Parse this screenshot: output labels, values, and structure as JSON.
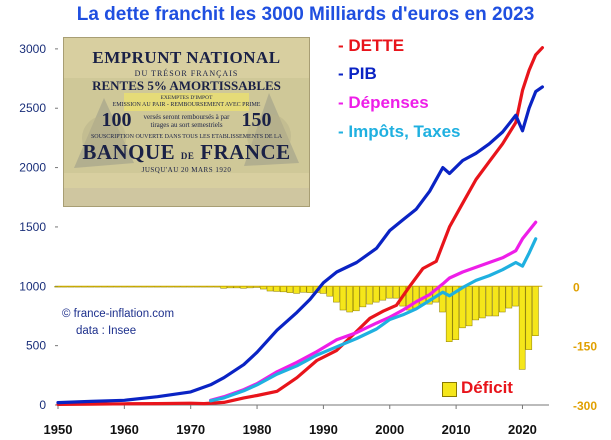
{
  "title": "La dette franchit les 3000 Milliards d'euros en 2023",
  "credit": {
    "line1": "© france-inflation.com",
    "line2": "data : Insee"
  },
  "legend": {
    "dette": "- DETTE",
    "pib": "- PIB",
    "depenses": "- Dépenses",
    "impots": "- Impôts, Taxes",
    "deficit": "Déficit"
  },
  "colors": {
    "dette": "#e8141b",
    "pib": "#0a23c4",
    "depenses": "#ee1ee8",
    "impots": "#1fb0e0",
    "deficit": "#f5e61a",
    "deficit_edge": "#8a7a00",
    "title": "#1f4fe0",
    "axis_left": "#1a2f7a",
    "axis_right": "#e0a000"
  },
  "poster": {
    "line1": "EMPRUNT NATIONAL",
    "line2": "DU TRÉSOR FRANÇAIS",
    "line3": "RENTES 5% AMORTISSABLES",
    "line4": "EXEMPTES D'IMPOT",
    "line5": "EMISSION AU PAIR - REMBOURSEMENT AVEC PRIME",
    "big_left": "100",
    "mid_text": "versés seront remboursés à par tirages au sort semestriels",
    "big_right": "150",
    "line7": "SOUSCRIPTION OUVERTE DANS TOUS LES ETABLISSEMENTS DE LA",
    "bank_a": "BANQUE",
    "bank_de": "DE",
    "bank_b": "FRANCE",
    "line9": "JUSQU'AU 20 MARS 1920"
  },
  "chart_data": {
    "type": "line",
    "title": "La dette franchit les 3000 Milliards d'euros en 2023",
    "xlim": [
      1950,
      2024
    ],
    "ylim": [
      0,
      3100
    ],
    "x_ticks": [
      1950,
      1960,
      1970,
      1980,
      1990,
      2000,
      2010,
      2020
    ],
    "y_ticks": [
      0,
      500,
      1000,
      1500,
      2000,
      2500,
      3000
    ],
    "grid": false,
    "legend_position": "top-right",
    "series": [
      {
        "name": "DETTE",
        "color": "#e8141b",
        "points": [
          [
            1950,
            5
          ],
          [
            1955,
            8
          ],
          [
            1960,
            10
          ],
          [
            1965,
            12
          ],
          [
            1970,
            15
          ],
          [
            1972,
            12
          ],
          [
            1975,
            22
          ],
          [
            1978,
            60
          ],
          [
            1980,
            80
          ],
          [
            1983,
            115
          ],
          [
            1986,
            230
          ],
          [
            1989,
            375
          ],
          [
            1992,
            460
          ],
          [
            1995,
            620
          ],
          [
            1997,
            730
          ],
          [
            1999,
            790
          ],
          [
            2001,
            840
          ],
          [
            2003,
            1000
          ],
          [
            2005,
            1150
          ],
          [
            2007,
            1210
          ],
          [
            2009,
            1500
          ],
          [
            2011,
            1700
          ],
          [
            2013,
            1900
          ],
          [
            2015,
            2050
          ],
          [
            2017,
            2200
          ],
          [
            2019,
            2380
          ],
          [
            2020,
            2650
          ],
          [
            2021,
            2820
          ],
          [
            2022,
            2950
          ],
          [
            2023,
            3010
          ]
        ]
      },
      {
        "name": "PIB",
        "color": "#0a23c4",
        "points": [
          [
            1950,
            20
          ],
          [
            1955,
            30
          ],
          [
            1960,
            40
          ],
          [
            1965,
            70
          ],
          [
            1970,
            110
          ],
          [
            1973,
            170
          ],
          [
            1975,
            230
          ],
          [
            1978,
            340
          ],
          [
            1980,
            445
          ],
          [
            1983,
            630
          ],
          [
            1986,
            780
          ],
          [
            1988,
            890
          ],
          [
            1990,
            1030
          ],
          [
            1992,
            1120
          ],
          [
            1995,
            1200
          ],
          [
            1998,
            1320
          ],
          [
            2000,
            1470
          ],
          [
            2002,
            1560
          ],
          [
            2004,
            1650
          ],
          [
            2006,
            1800
          ],
          [
            2008,
            2000
          ],
          [
            2009,
            1950
          ],
          [
            2011,
            2060
          ],
          [
            2013,
            2120
          ],
          [
            2015,
            2200
          ],
          [
            2017,
            2300
          ],
          [
            2019,
            2440
          ],
          [
            2020,
            2310
          ],
          [
            2021,
            2500
          ],
          [
            2022,
            2640
          ],
          [
            2023,
            2680
          ]
        ]
      },
      {
        "name": "Dépenses",
        "color": "#ee1ee8",
        "points": [
          [
            1973,
            40
          ],
          [
            1975,
            70
          ],
          [
            1978,
            130
          ],
          [
            1980,
            180
          ],
          [
            1983,
            280
          ],
          [
            1986,
            360
          ],
          [
            1989,
            450
          ],
          [
            1992,
            550
          ],
          [
            1995,
            610
          ],
          [
            1998,
            690
          ],
          [
            2000,
            740
          ],
          [
            2002,
            800
          ],
          [
            2004,
            870
          ],
          [
            2006,
            930
          ],
          [
            2008,
            1020
          ],
          [
            2009,
            1070
          ],
          [
            2011,
            1120
          ],
          [
            2013,
            1160
          ],
          [
            2015,
            1200
          ],
          [
            2017,
            1240
          ],
          [
            2019,
            1300
          ],
          [
            2020,
            1400
          ],
          [
            2021,
            1470
          ],
          [
            2022,
            1540
          ]
        ]
      },
      {
        "name": "Impôts, Taxes",
        "color": "#1fb0e0",
        "points": [
          [
            1973,
            35
          ],
          [
            1975,
            60
          ],
          [
            1978,
            120
          ],
          [
            1980,
            170
          ],
          [
            1983,
            260
          ],
          [
            1986,
            330
          ],
          [
            1989,
            420
          ],
          [
            1992,
            490
          ],
          [
            1995,
            560
          ],
          [
            1998,
            640
          ],
          [
            2000,
            720
          ],
          [
            2002,
            760
          ],
          [
            2004,
            810
          ],
          [
            2006,
            880
          ],
          [
            2008,
            950
          ],
          [
            2009,
            920
          ],
          [
            2011,
            990
          ],
          [
            2013,
            1050
          ],
          [
            2015,
            1090
          ],
          [
            2017,
            1140
          ],
          [
            2019,
            1200
          ],
          [
            2020,
            1170
          ],
          [
            2021,
            1280
          ],
          [
            2022,
            1400
          ]
        ]
      }
    ],
    "bars": {
      "name": "Déficit",
      "right_axis_ticks": [
        0,
        -150,
        -300
      ],
      "right_ylim": [
        -300,
        0
      ],
      "color": "#f5e61a",
      "years": [
        1950,
        1951,
        1952,
        1953,
        1954,
        1955,
        1956,
        1957,
        1958,
        1959,
        1960,
        1961,
        1962,
        1963,
        1964,
        1965,
        1966,
        1967,
        1968,
        1969,
        1970,
        1971,
        1972,
        1973,
        1974,
        1975,
        1976,
        1977,
        1978,
        1979,
        1980,
        1981,
        1982,
        1983,
        1984,
        1985,
        1986,
        1987,
        1988,
        1989,
        1990,
        1991,
        1992,
        1993,
        1994,
        1995,
        1996,
        1997,
        1998,
        1999,
        2000,
        2001,
        2002,
        2003,
        2004,
        2005,
        2006,
        2007,
        2008,
        2009,
        2010,
        2011,
        2012,
        2013,
        2014,
        2015,
        2016,
        2017,
        2018,
        2019,
        2020,
        2021,
        2022
      ],
      "values": [
        -1,
        -1,
        -1,
        -1,
        -1,
        -1,
        -2,
        -2,
        -1,
        -1,
        -1,
        -1,
        -1,
        -1,
        -1,
        -1,
        -1,
        -1,
        -2,
        -1,
        -1,
        -1,
        -1,
        -2,
        -2,
        -5,
        -4,
        -4,
        -5,
        -4,
        -3,
        -7,
        -12,
        -13,
        -14,
        -16,
        -18,
        -15,
        -16,
        -16,
        -18,
        -25,
        -40,
        -60,
        -65,
        -62,
        -52,
        -45,
        -40,
        -35,
        -30,
        -30,
        -50,
        -60,
        -55,
        -45,
        -45,
        -40,
        -65,
        -140,
        -135,
        -105,
        -100,
        -85,
        -80,
        -75,
        -75,
        -65,
        -55,
        -50,
        -210,
        -160,
        -125
      ]
    }
  }
}
